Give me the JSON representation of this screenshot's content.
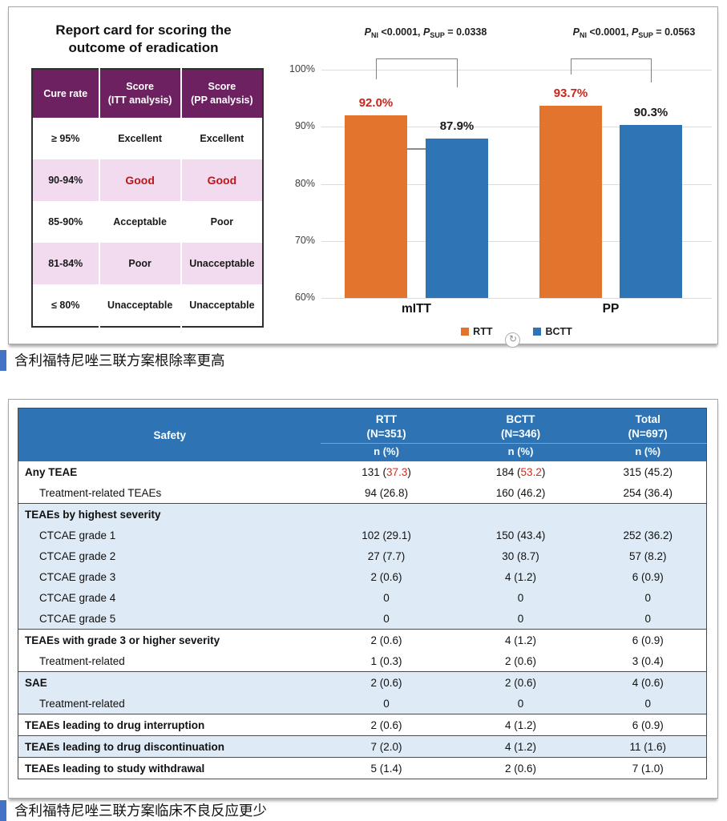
{
  "colors": {
    "rtt_orange": "#E2742D",
    "bctt_blue": "#2E75B6",
    "chart_label_red": "#C8251B",
    "bctt_label_black": "#1a1a1a",
    "table_header_blue": "#2E74B5",
    "band_blue": "#DEEAF6",
    "report_header_purple": "#6E2161",
    "report_pink": "#F2DBEF",
    "good_red": "#C01418",
    "value_red": "#D7281A",
    "caption_marker_blue": "#4472C4"
  },
  "report_card": {
    "title_line1": "Report card for scoring the",
    "title_line2": "outcome of eradication",
    "headers": [
      {
        "l1": "Cure rate",
        "l2": ""
      },
      {
        "l1": "Score",
        "l2": "(ITT analysis)"
      },
      {
        "l1": "Score",
        "l2": "(PP analysis)"
      }
    ],
    "rows": [
      {
        "cure": "≥ 95%",
        "itt": "Excellent",
        "pp": "Excellent",
        "pink": false,
        "red": false
      },
      {
        "cure": "90-94%",
        "itt": "Good",
        "pp": "Good",
        "pink": true,
        "red": true
      },
      {
        "cure": "85-90%",
        "itt": "Acceptable",
        "pp": "Poor",
        "pink": false,
        "red": false
      },
      {
        "cure": "81-84%",
        "itt": "Poor",
        "pp": "Unacceptable",
        "pink": true,
        "red": false
      },
      {
        "cure": "≤ 80%",
        "itt": "Unacceptable",
        "pp": "Unacceptable",
        "pink": false,
        "red": false
      }
    ]
  },
  "chart_data": {
    "type": "bar",
    "categories": [
      "mITT",
      "PP"
    ],
    "series": [
      {
        "name": "RTT",
        "values": [
          92.0,
          93.7
        ]
      },
      {
        "name": "BCTT",
        "values": [
          87.9,
          90.3
        ]
      }
    ],
    "value_labels": [
      [
        "92.0%",
        "93.7%"
      ],
      [
        "87.9%",
        "90.3%"
      ]
    ],
    "ylim": [
      60,
      100
    ],
    "yticks": [
      {
        "v": 100,
        "label": "100%"
      },
      {
        "v": 90,
        "label": "90%"
      },
      {
        "v": 80,
        "label": "80%"
      },
      {
        "v": 70,
        "label": "70%"
      },
      {
        "v": 60,
        "label": "60%"
      }
    ],
    "grid": true,
    "legend_position": "bottom",
    "pvals": [
      {
        "p1": "P",
        "s1": "NI",
        "v1": " <0.0001, ",
        "p2": "P",
        "s2": "SUP",
        "v2": " = 0.0338"
      },
      {
        "p1": "P",
        "s1": "NI",
        "v1": " <0.0001, ",
        "p2": "P",
        "s2": "SUP",
        "v2": " = 0.0563"
      }
    ]
  },
  "chart_ui": {
    "refresh_icon_glyph": "↻"
  },
  "captions": {
    "chart": "含利福特尼唑三联方案根除率更高",
    "safety": "含利福特尼唑三联方案临床不良反应更少"
  },
  "safety_table": {
    "col_headers": [
      {
        "name": "Safety",
        "n": ""
      },
      {
        "name": "RTT",
        "n": "(N=351)"
      },
      {
        "name": "BCTT",
        "n": "(N=346)"
      },
      {
        "name": "Total",
        "n": "(N=697)"
      }
    ],
    "subheader": "n (%)",
    "rows": [
      {
        "label": "Any TEAE",
        "bold": true,
        "indent": false,
        "band": false,
        "section": false,
        "cells": [
          {
            "v": "131 (37.3)",
            "red": "37.3"
          },
          {
            "v": "184 (53.2)",
            "red": "53.2"
          },
          {
            "v": "315 (45.2)"
          }
        ]
      },
      {
        "label": "Treatment-related TEAEs",
        "bold": false,
        "indent": true,
        "band": false,
        "section": false,
        "cells": [
          {
            "v": "94 (26.8)"
          },
          {
            "v": "160 (46.2)"
          },
          {
            "v": "254 (36.4)"
          }
        ]
      },
      {
        "label": "TEAEs by highest severity",
        "bold": true,
        "indent": false,
        "band": true,
        "section": true,
        "cells": [
          {
            "v": ""
          },
          {
            "v": ""
          },
          {
            "v": ""
          }
        ]
      },
      {
        "label": "CTCAE grade 1",
        "bold": false,
        "indent": true,
        "band": true,
        "section": false,
        "cells": [
          {
            "v": "102 (29.1)"
          },
          {
            "v": "150 (43.4)"
          },
          {
            "v": "252 (36.2)"
          }
        ]
      },
      {
        "label": "CTCAE grade 2",
        "bold": false,
        "indent": true,
        "band": true,
        "section": false,
        "cells": [
          {
            "v": "27 (7.7)"
          },
          {
            "v": "30 (8.7)"
          },
          {
            "v": "57 (8.2)"
          }
        ]
      },
      {
        "label": "CTCAE grade 3",
        "bold": false,
        "indent": true,
        "band": true,
        "section": false,
        "cells": [
          {
            "v": "2 (0.6)"
          },
          {
            "v": "4 (1.2)"
          },
          {
            "v": "6 (0.9)"
          }
        ]
      },
      {
        "label": "CTCAE grade 4",
        "bold": false,
        "indent": true,
        "band": true,
        "section": false,
        "cells": [
          {
            "v": "0"
          },
          {
            "v": "0"
          },
          {
            "v": "0"
          }
        ]
      },
      {
        "label": "CTCAE grade 5",
        "bold": false,
        "indent": true,
        "band": true,
        "section": false,
        "cells": [
          {
            "v": "0"
          },
          {
            "v": "0"
          },
          {
            "v": "0"
          }
        ]
      },
      {
        "label": "TEAEs with grade 3 or higher severity",
        "bold": true,
        "indent": false,
        "band": false,
        "section": true,
        "cells": [
          {
            "v": "2 (0.6)"
          },
          {
            "v": "4 (1.2)"
          },
          {
            "v": "6 (0.9)"
          }
        ]
      },
      {
        "label": "Treatment-related",
        "bold": false,
        "indent": true,
        "band": false,
        "section": false,
        "cells": [
          {
            "v": "1 (0.3)"
          },
          {
            "v": "2 (0.6)"
          },
          {
            "v": "3 (0.4)"
          }
        ]
      },
      {
        "label": "SAE",
        "bold": true,
        "indent": false,
        "band": true,
        "section": true,
        "cells": [
          {
            "v": "2 (0.6)"
          },
          {
            "v": "2 (0.6)"
          },
          {
            "v": "4 (0.6)"
          }
        ]
      },
      {
        "label": "Treatment-related",
        "bold": false,
        "indent": true,
        "band": true,
        "section": false,
        "cells": [
          {
            "v": "0"
          },
          {
            "v": "0"
          },
          {
            "v": "0"
          }
        ]
      },
      {
        "label": "TEAEs leading to drug interruption",
        "bold": true,
        "indent": false,
        "band": false,
        "section": true,
        "cells": [
          {
            "v": "2 (0.6)"
          },
          {
            "v": "4 (1.2)"
          },
          {
            "v": "6 (0.9)"
          }
        ]
      },
      {
        "label": "TEAEs leading to drug discontinuation",
        "bold": true,
        "indent": false,
        "band": true,
        "section": true,
        "cells": [
          {
            "v": "7 (2.0)"
          },
          {
            "v": "4 (1.2)"
          },
          {
            "v": "11 (1.6)"
          }
        ]
      },
      {
        "label": "TEAEs leading to study withdrawal",
        "bold": true,
        "indent": false,
        "band": false,
        "section": true,
        "cells": [
          {
            "v": "5 (1.4)"
          },
          {
            "v": "2 (0.6)"
          },
          {
            "v": "7 (1.0)"
          }
        ]
      }
    ]
  }
}
